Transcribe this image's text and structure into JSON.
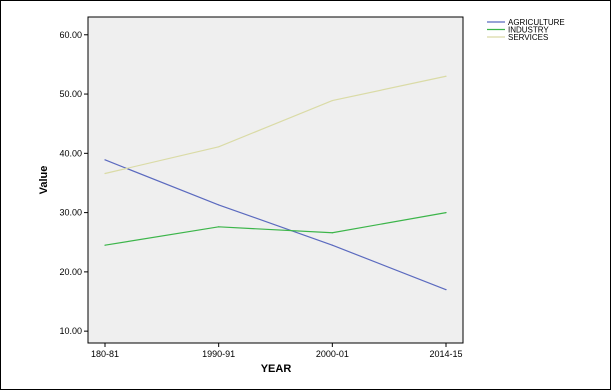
{
  "chart_data": {
    "type": "line",
    "title": "",
    "xlabel": "YEAR",
    "ylabel": "Value",
    "categories": [
      "180-81",
      "1990-91",
      "2000-01",
      "2014-15"
    ],
    "ylim": [
      8,
      63
    ],
    "yticks": [
      "10.00",
      "20.00",
      "30.00",
      "40.00",
      "50.00",
      "60.00"
    ],
    "grid": false,
    "legend_position": "top-right, outside plot",
    "plot_background": "#efefef",
    "series": [
      {
        "name": "AGRICULTURE",
        "color": "#5b6abf",
        "values": [
          38.9,
          31.3,
          24.5,
          17.0
        ]
      },
      {
        "name": "INDUSTRY",
        "color": "#3cb54a",
        "values": [
          24.5,
          27.6,
          26.6,
          30.0
        ]
      },
      {
        "name": "SERVICES",
        "color": "#dadba6",
        "values": [
          36.6,
          41.1,
          48.9,
          53.0
        ]
      }
    ]
  }
}
